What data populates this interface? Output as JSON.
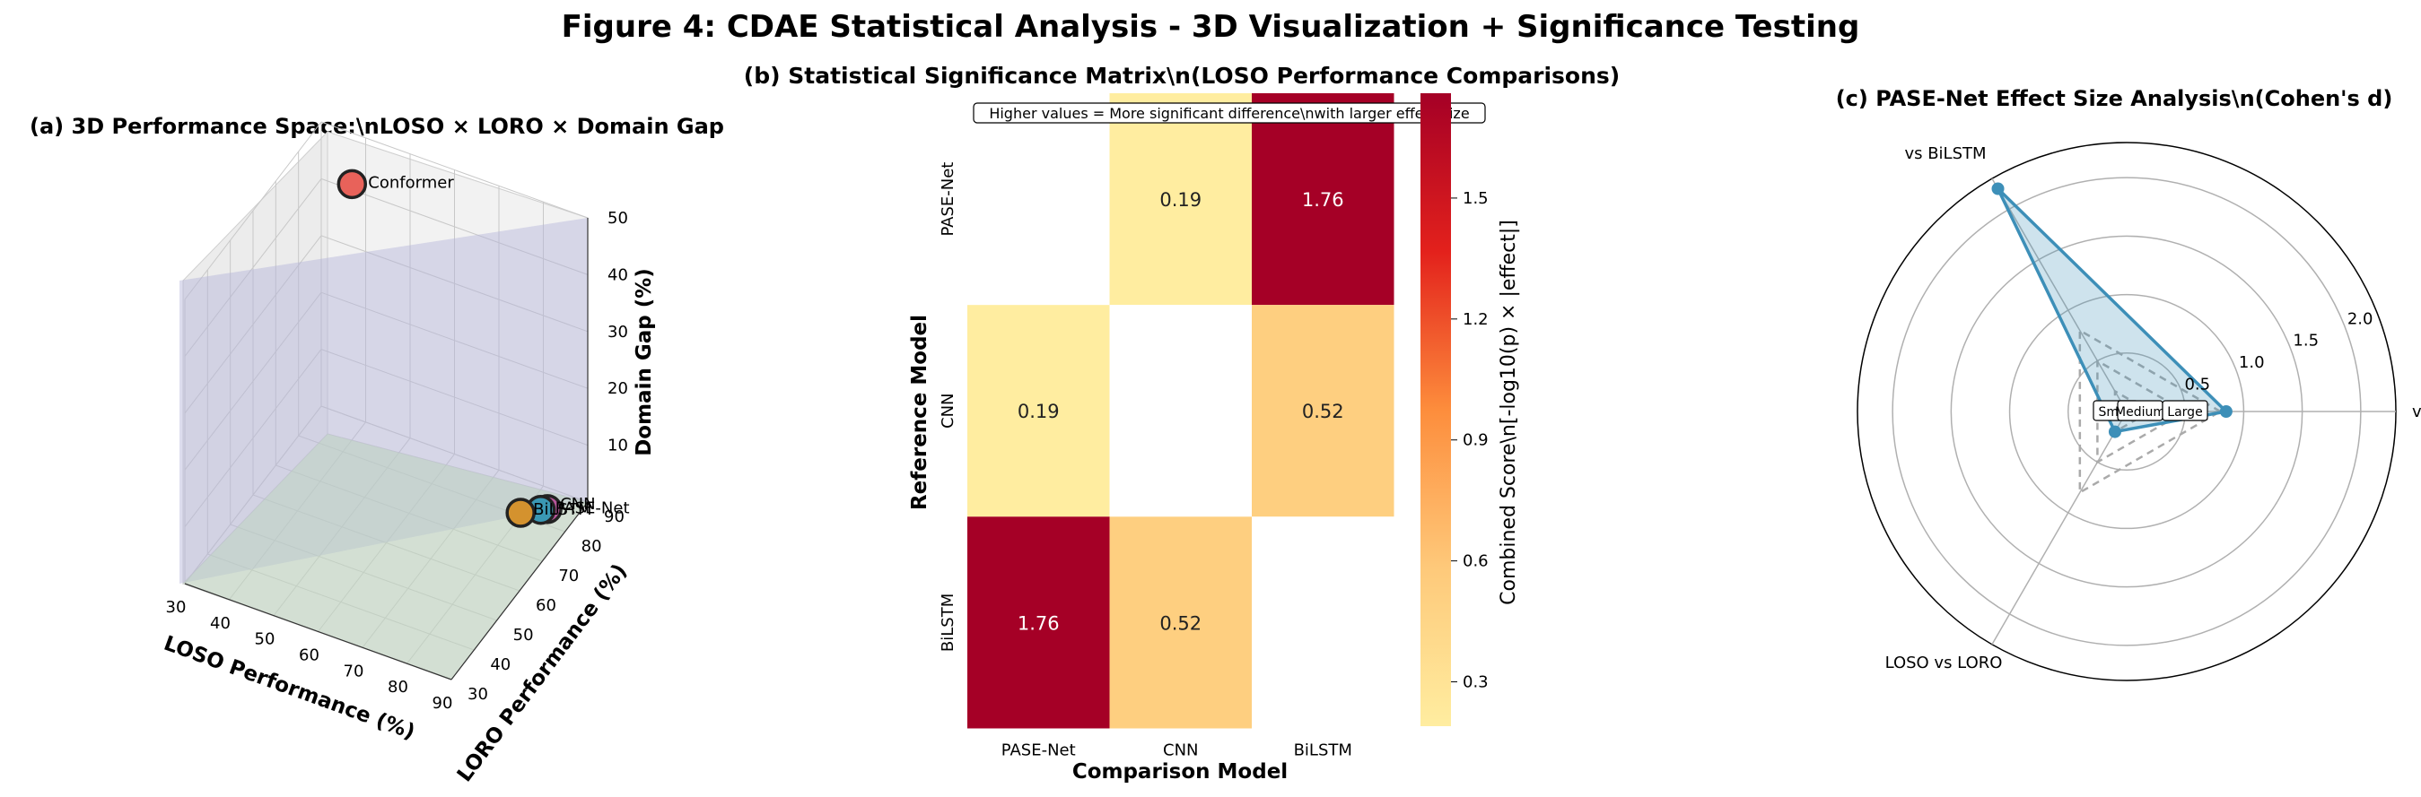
{
  "figure_title": "Figure 4: CDAE Statistical Analysis - 3D Visualization + Significance Testing",
  "panel_a": {
    "title": "(a) 3D Performance Space:\\nLOSO × LORO × Domain Gap",
    "xlabel": "LOSO Performance (%)",
    "ylabel": "LORO Performance (%)",
    "zlabel": "Domain Gap (%)",
    "x_ticks": [
      "30",
      "40",
      "50",
      "60",
      "70",
      "80",
      "90"
    ],
    "y_ticks": [
      "30",
      "40",
      "50",
      "60",
      "70",
      "80",
      "90"
    ],
    "z_ticks": [
      "10",
      "20",
      "30",
      "40",
      "50"
    ]
  },
  "panel_b": {
    "title_line1": "(b) Statistical Significance Matrix\\n(LOSO Performance Comparisons)",
    "annotation": "Higher values = More significant difference\\nwith larger effect size",
    "xlabel": "Comparison Model",
    "ylabel": "Reference Model",
    "colorbar_label": "Combined Score\\n[-log10(p) × |effect|]",
    "colorbar_ticks": [
      "0.3",
      "0.6",
      "0.9",
      "1.2",
      "1.5"
    ]
  },
  "panel_c": {
    "title": "(c) PASE-Net Effect Size Analysis\\n(Cohen's d)",
    "radial_ticks": [
      "0.5",
      "1.0",
      "1.5",
      "2.0"
    ],
    "ref_labels": [
      "Small",
      "Medium",
      "Large"
    ]
  },
  "chart_data": [
    {
      "type": "scatter",
      "panel": "a",
      "dims": [
        "LOSO Performance (%)",
        "LORO Performance (%)",
        "Domain Gap (%)"
      ],
      "xlim": [
        30,
        90
      ],
      "ylim": [
        30,
        90
      ],
      "zlim": [
        0,
        50
      ],
      "grid": true,
      "points": [
        {
          "label": "Conformer",
          "x": 40,
          "y": 84,
          "z": 45,
          "color": "#e8625a"
        },
        {
          "label": "CNN",
          "x": 84,
          "y": 84,
          "z": 0.2,
          "color": "#b6569a"
        },
        {
          "label": "PASE-Net",
          "x": 83,
          "y": 83,
          "z": 0.3,
          "color": "#3a98b4"
        },
        {
          "label": "BiLSTM",
          "x": 80,
          "y": 80,
          "z": 0.5,
          "color": "#d4922e"
        }
      ]
    },
    {
      "type": "heatmap",
      "panel": "b",
      "rows": [
        "PASE-Net",
        "CNN",
        "BiLSTM"
      ],
      "cols": [
        "PASE-Net",
        "CNN",
        "BiLSTM"
      ],
      "values": [
        [
          null,
          0.19,
          1.76
        ],
        [
          0.19,
          null,
          0.52
        ],
        [
          1.76,
          0.52,
          null
        ]
      ],
      "colormap": "YlOrRd",
      "vmin": 0.19,
      "vmax": 1.76
    },
    {
      "type": "radar",
      "panel": "c",
      "axes": [
        "vs CNN",
        "vs BiLSTM",
        "LOSO vs LORO"
      ],
      "axis_angles_deg": [
        0,
        120,
        240
      ],
      "rmax": 2.3,
      "series": [
        {
          "values": [
            0.85,
            2.2,
            0.2
          ],
          "color": "#3d8fb8"
        }
      ],
      "reference_rings": [
        0.2,
        0.5,
        0.8
      ]
    }
  ]
}
